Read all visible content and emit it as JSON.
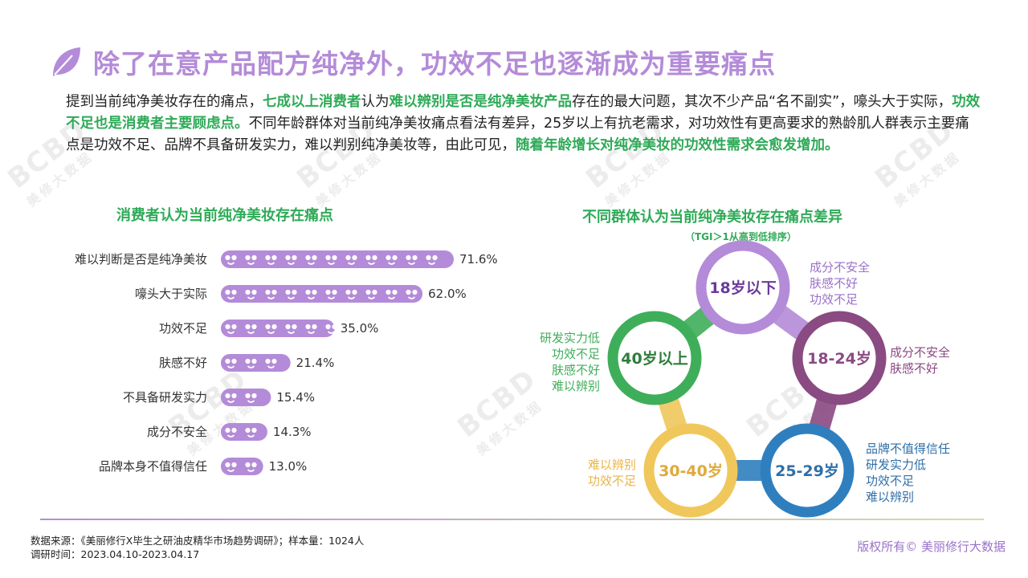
{
  "title": "除了在意产品配方纯净外，功效不足也逐渐成为重要痛点",
  "intro": [
    {
      "t": "提到当前纯净美妆存在的痛点，",
      "hl": false
    },
    {
      "t": "七成以上消费者",
      "hl": true
    },
    {
      "t": "认为",
      "hl": false
    },
    {
      "t": "难以辨别是否是纯净美妆产品",
      "hl": true
    },
    {
      "t": "存在的最大问题，其次不少产品“名不副实”，嚎头大于实际，",
      "hl": false
    },
    {
      "t": "功效不足也是消费者主要顾虑点。",
      "hl": true
    },
    {
      "t": "不同年龄群体对当前纯净美妆痛点看法有差异，25岁以上有抗老需求，对功效性有更高要求的熟龄肌人群表示主要痛点是功效不足、品牌不具备研发实力，难以判别纯净美妆等，由此可见，",
      "hl": false
    },
    {
      "t": "随着年龄增长对纯净美妆的功效性需求会愈发增加。",
      "hl": true
    }
  ],
  "watermark": {
    "logo": "BCBD",
    "text": "美修大数据"
  },
  "chart_data": [
    {
      "type": "bar",
      "orientation": "horizontal",
      "title": "消费者认为当前纯净美妆存在痛点",
      "categories": [
        "难以判断是否是纯净美妆",
        "嚎头大于实际",
        "功效不足",
        "肤感不好",
        "不具备研发实力",
        "成分不安全",
        "品牌本身不值得信任"
      ],
      "values": [
        71.6,
        62.0,
        35.0,
        21.4,
        15.4,
        14.3,
        13.0
      ],
      "value_labels": [
        "71.6%",
        "62.0%",
        "35.0%",
        "21.4%",
        "15.4%",
        "14.3%",
        "13.0%"
      ],
      "xlim": [
        0,
        100
      ],
      "bar_color": "#b48bd8",
      "bar_style": "pictograph"
    }
  ],
  "diagram": {
    "title": "不同群体认为当前纯净美妆存在痛点差异",
    "subtitle": "（TGI＞1从高到低排序）",
    "nodes": [
      {
        "label": "18岁以下",
        "color": "#b48bd8",
        "text_color": "#6a3b9a",
        "notes": [
          "成分不安全",
          "肤感不好",
          "功效不足"
        ],
        "note_color": "#9a72c7"
      },
      {
        "label": "18-24岁",
        "color": "#8a4a82",
        "text_color": "#8a4a82",
        "notes": [
          "成分不安全",
          "肤感不好"
        ],
        "note_color": "#8a4a82"
      },
      {
        "label": "25-29岁",
        "color": "#2f7fbf",
        "text_color": "#2f6fa8",
        "notes": [
          "品牌不值得信任",
          "研发实力低",
          "功效不足",
          "难以辨别"
        ],
        "note_color": "#2f6fa8"
      },
      {
        "label": "30-40岁",
        "color": "#f0c75a",
        "text_color": "#e0a93a",
        "notes": [
          "难以辨别",
          "功效不足"
        ],
        "note_color": "#e8b54a"
      },
      {
        "label": "40岁以上",
        "color": "#3fae5a",
        "text_color": "#2e7d3a",
        "notes": [
          "研发实力低",
          "功效不足",
          "肤感不好",
          "难以辨别"
        ],
        "note_color": "#3fae5a"
      }
    ]
  },
  "footer": {
    "source": "数据来源：《美丽修行X毕生之研油皮精华市场趋势调研》；样本量：1024人",
    "period": "调研时间：2023.04.10-2023.04.17",
    "copyright": "版权所有© 美丽修行大数据"
  }
}
